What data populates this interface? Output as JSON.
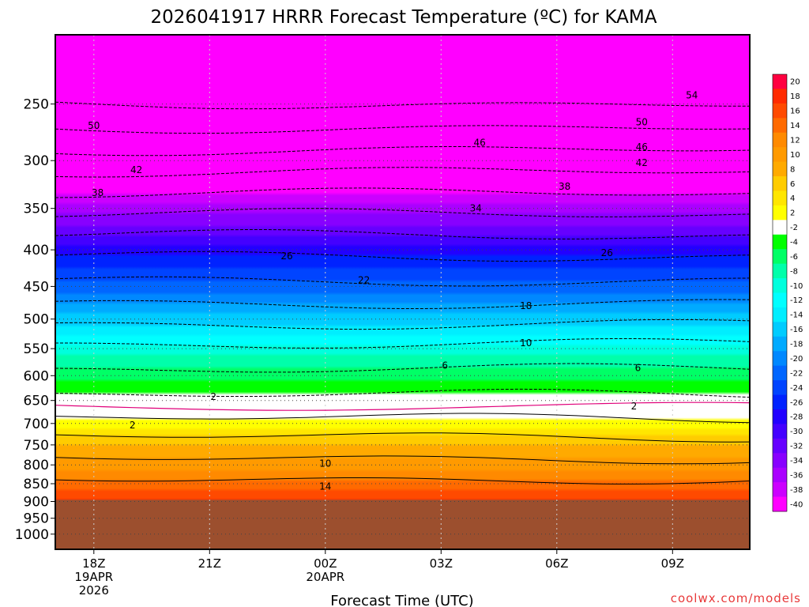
{
  "chart_data": {
    "type": "heatmap",
    "title": "2026041917 HRRR Forecast Temperature (ºC) for KAMA",
    "xlabel": "Forecast Time (UTC)",
    "ylabel": "",
    "x_hours": [
      0,
      3,
      6,
      9,
      12,
      15,
      18
    ],
    "x_ticks": [
      {
        "hour": 0,
        "label": "18Z",
        "date": "19APR",
        "year": "2026"
      },
      {
        "hour": 3,
        "label": "21Z",
        "date": "",
        "year": ""
      },
      {
        "hour": 6,
        "label": "00Z",
        "date": "20APR",
        "year": ""
      },
      {
        "hour": 9,
        "label": "03Z",
        "date": "",
        "year": ""
      },
      {
        "hour": 12,
        "label": "06Z",
        "date": "",
        "year": ""
      },
      {
        "hour": 15,
        "label": "09Z",
        "date": "",
        "year": ""
      }
    ],
    "y_ticks": [
      250,
      300,
      350,
      400,
      450,
      500,
      550,
      600,
      650,
      700,
      750,
      800,
      850,
      900,
      950,
      1000
    ],
    "ylim": [
      1050,
      200
    ],
    "xlim": [
      -1,
      17
    ],
    "surface_pressure_hPa": 895,
    "profile_temps": {
      "pressures": [
        200,
        250,
        300,
        350,
        400,
        450,
        500,
        550,
        600,
        650,
        700,
        750,
        800,
        850,
        895
      ],
      "temps": [
        -60,
        -54,
        -44,
        -35,
        -27,
        -21,
        -15,
        -9,
        -5,
        -1,
        3,
        8,
        11,
        15,
        18
      ]
    },
    "colorbar": {
      "levels": [
        20,
        18,
        16,
        14,
        12,
        10,
        8,
        6,
        4,
        2,
        -2,
        -4,
        -6,
        -8,
        -10,
        -12,
        -14,
        -16,
        -18,
        -20,
        -22,
        -24,
        -26,
        -28,
        -30,
        -32,
        -34,
        -36,
        -38,
        -40
      ],
      "colors": [
        "#ff0040",
        "#ff2a00",
        "#ff4a00",
        "#ff6a00",
        "#ff8a00",
        "#ff9a00",
        "#ffaa00",
        "#ffcc00",
        "#ffe600",
        "#ffff00",
        "#ffffff",
        "#00ff00",
        "#00ff66",
        "#00ffaa",
        "#00ffdd",
        "#00ffff",
        "#00eeff",
        "#00ccff",
        "#00aaff",
        "#0088ff",
        "#0066ff",
        "#0044ff",
        "#0022ff",
        "#2200ff",
        "#4400ff",
        "#6600ff",
        "#8800ff",
        "#aa00ff",
        "#cc00ff",
        "#ff00ff"
      ]
    },
    "contour_labels": [
      {
        "text": "54",
        "hour": 15.5,
        "p": 243
      },
      {
        "text": "50",
        "hour": 0,
        "p": 268
      },
      {
        "text": "50",
        "hour": 14.2,
        "p": 265
      },
      {
        "text": "46",
        "hour": 10.0,
        "p": 283
      },
      {
        "text": "46",
        "hour": 14.2,
        "p": 287
      },
      {
        "text": "42",
        "hour": 1.1,
        "p": 309
      },
      {
        "text": "42",
        "hour": 14.2,
        "p": 302
      },
      {
        "text": "38",
        "hour": 0.1,
        "p": 333
      },
      {
        "text": "38",
        "hour": 12.2,
        "p": 326
      },
      {
        "text": "34",
        "hour": 9.9,
        "p": 350
      },
      {
        "text": "26",
        "hour": 5.0,
        "p": 408
      },
      {
        "text": "26",
        "hour": 13.3,
        "p": 404
      },
      {
        "text": "22",
        "hour": 7.0,
        "p": 441
      },
      {
        "text": "18",
        "hour": 11.2,
        "p": 479
      },
      {
        "text": "10",
        "hour": 11.2,
        "p": 540
      },
      {
        "text": "6",
        "hour": 9.1,
        "p": 581
      },
      {
        "text": "6",
        "hour": 14.1,
        "p": 585
      },
      {
        "text": "2",
        "hour": 3.1,
        "p": 642
      },
      {
        "text": "2",
        "hour": 14.0,
        "p": 662
      },
      {
        "text": "2",
        "hour": 1.0,
        "p": 704
      },
      {
        "text": "10",
        "hour": 6.0,
        "p": 796
      },
      {
        "text": "14",
        "hour": 6.0,
        "p": 857
      }
    ]
  },
  "credit": "coolwx.com/models"
}
